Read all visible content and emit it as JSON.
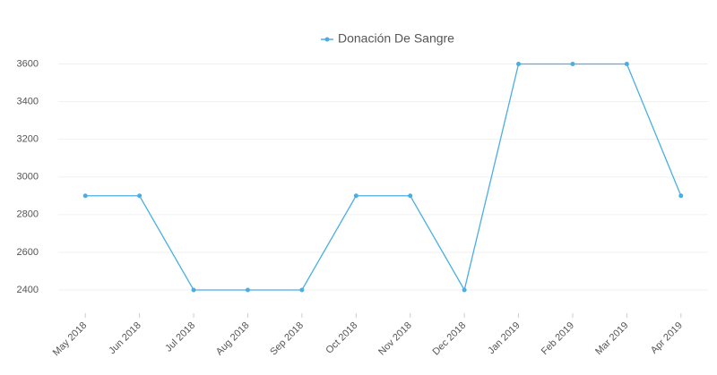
{
  "chart_data": {
    "type": "line",
    "categories": [
      "May 2018",
      "Jun 2018",
      "Jul 2018",
      "Aug 2018",
      "Sep 2018",
      "Oct 2018",
      "Nov 2018",
      "Dec 2018",
      "Jan 2019",
      "Feb 2019",
      "Mar 2019",
      "Apr 2019"
    ],
    "series": [
      {
        "name": "Donación De Sangre",
        "color": "#4aaee4",
        "values": [
          2900,
          2900,
          2400,
          2400,
          2400,
          2900,
          2900,
          2400,
          3600,
          3600,
          3600,
          2900
        ]
      }
    ],
    "ylim": [
      2300,
      3650
    ],
    "yticks": [
      2400,
      2600,
      2800,
      3000,
      3200,
      3400,
      3600
    ],
    "grid": true,
    "legend": "top"
  }
}
